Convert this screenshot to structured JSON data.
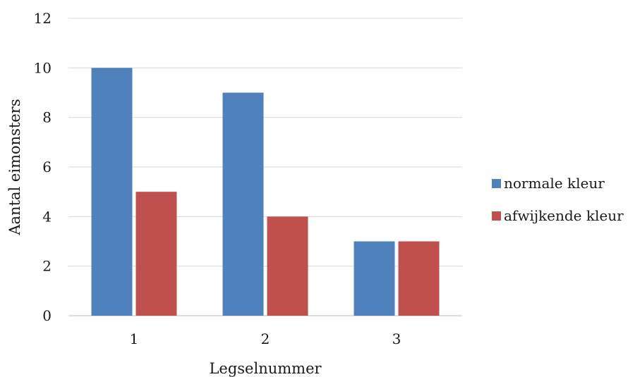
{
  "chart_data": {
    "type": "bar",
    "categories": [
      "1",
      "2",
      "3"
    ],
    "series": [
      {
        "name": "normale kleur",
        "values": [
          10,
          9,
          3
        ],
        "color": "#4f81bd"
      },
      {
        "name": "afwijkende kleur",
        "values": [
          5,
          4,
          3
        ],
        "color": "#c0504d"
      }
    ],
    "xlabel": "Legselnummer",
    "ylabel": "Aantal eimonsters",
    "ylim": [
      0,
      12
    ],
    "yticks": [
      "0",
      "2",
      "4",
      "6",
      "8",
      "10",
      "12"
    ],
    "grid": true,
    "legend_position": "right"
  }
}
